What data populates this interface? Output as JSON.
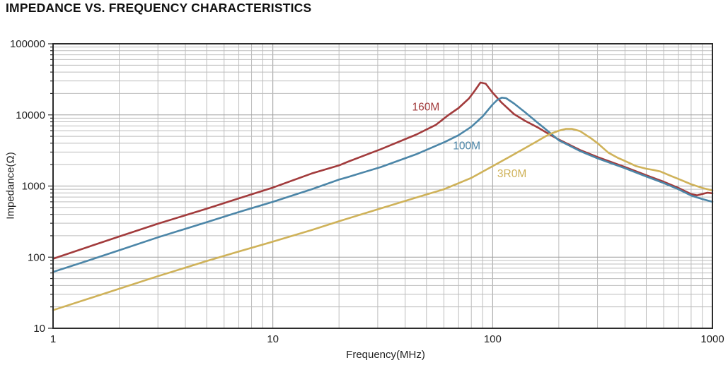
{
  "title": "IMPEDANCE VS. FREQUENCY CHARACTERISTICS",
  "page": {
    "background": "#ffffff"
  },
  "chart_data": {
    "type": "line",
    "title": "IMPEDANCE VS. FREQUENCY CHARACTERISTICS",
    "xlabel": "Frequency(MHz)",
    "ylabel": "Impedance(Ω)",
    "x_scale": "log",
    "y_scale": "log",
    "xlim": [
      1,
      1000
    ],
    "ylim": [
      10,
      100000
    ],
    "grid": "log major and minor gridlines, full frame",
    "legend_position": "inline curve labels",
    "x_ticks": [
      {
        "value": 1,
        "label": "1"
      },
      {
        "value": 10,
        "label": "10"
      },
      {
        "value": 100,
        "label": "100"
      },
      {
        "value": 1000,
        "label": "1000"
      }
    ],
    "y_ticks": [
      {
        "value": 10,
        "label": "10"
      },
      {
        "value": 100,
        "label": "100"
      },
      {
        "value": 1000,
        "label": "1000"
      },
      {
        "value": 10000,
        "label": "10000"
      },
      {
        "value": 100000,
        "label": "100000"
      }
    ],
    "colors": {
      "grid_minor": "#bdbdbd",
      "grid_major": "#9d9d9d",
      "frame": "#2c2c2c",
      "tick_text": "#222222"
    },
    "series": [
      {
        "name": "160M",
        "color": "#a23b3c",
        "label_at": [
          43,
          11500
        ],
        "points": [
          [
            1,
            95
          ],
          [
            1.5,
            145
          ],
          [
            2,
            195
          ],
          [
            3,
            295
          ],
          [
            5,
            480
          ],
          [
            7,
            670
          ],
          [
            10,
            950
          ],
          [
            15,
            1500
          ],
          [
            20,
            1950
          ],
          [
            22,
            2200
          ],
          [
            31,
            3300
          ],
          [
            45,
            5300
          ],
          [
            55,
            7200
          ],
          [
            63,
            10000
          ],
          [
            70,
            12500
          ],
          [
            78,
            17000
          ],
          [
            83,
            22000
          ],
          [
            88,
            28500
          ],
          [
            93,
            27500
          ],
          [
            100,
            20500
          ],
          [
            110,
            14800
          ],
          [
            125,
            10300
          ],
          [
            140,
            8300
          ],
          [
            160,
            6700
          ],
          [
            180,
            5400
          ],
          [
            200,
            4500
          ],
          [
            250,
            3200
          ],
          [
            300,
            2550
          ],
          [
            400,
            1850
          ],
          [
            500,
            1420
          ],
          [
            600,
            1150
          ],
          [
            700,
            940
          ],
          [
            800,
            770
          ],
          [
            850,
            740
          ],
          [
            900,
            775
          ],
          [
            950,
            805
          ],
          [
            1000,
            790
          ]
        ]
      },
      {
        "name": "100M",
        "color": "#4c86a8",
        "label_at": [
          66,
          3300
        ],
        "points": [
          [
            1,
            62
          ],
          [
            1.5,
            93
          ],
          [
            2,
            125
          ],
          [
            3,
            190
          ],
          [
            5,
            310
          ],
          [
            7,
            430
          ],
          [
            10,
            600
          ],
          [
            15,
            900
          ],
          [
            20,
            1230
          ],
          [
            22,
            1340
          ],
          [
            31,
            1850
          ],
          [
            45,
            2800
          ],
          [
            61,
            4200
          ],
          [
            70,
            5200
          ],
          [
            80,
            6800
          ],
          [
            90,
            9500
          ],
          [
            100,
            14000
          ],
          [
            105,
            16200
          ],
          [
            110,
            17500
          ],
          [
            115,
            17200
          ],
          [
            125,
            14500
          ],
          [
            140,
            11000
          ],
          [
            160,
            7800
          ],
          [
            180,
            5800
          ],
          [
            200,
            4400
          ],
          [
            250,
            3100
          ],
          [
            300,
            2450
          ],
          [
            400,
            1780
          ],
          [
            500,
            1360
          ],
          [
            600,
            1100
          ],
          [
            700,
            900
          ],
          [
            800,
            735
          ],
          [
            900,
            655
          ],
          [
            1000,
            600
          ]
        ]
      },
      {
        "name": "3R0M",
        "color": "#cfb259",
        "label_at": [
          105,
          1330
        ],
        "points": [
          [
            1,
            18
          ],
          [
            2,
            36
          ],
          [
            3,
            54
          ],
          [
            5,
            88
          ],
          [
            7,
            120
          ],
          [
            10,
            165
          ],
          [
            15,
            240
          ],
          [
            20,
            320
          ],
          [
            30,
            470
          ],
          [
            45,
            690
          ],
          [
            60,
            900
          ],
          [
            80,
            1300
          ],
          [
            100,
            1900
          ],
          [
            120,
            2600
          ],
          [
            140,
            3400
          ],
          [
            160,
            4300
          ],
          [
            180,
            5300
          ],
          [
            200,
            6000
          ],
          [
            215,
            6350
          ],
          [
            230,
            6350
          ],
          [
            250,
            5900
          ],
          [
            280,
            4700
          ],
          [
            300,
            4000
          ],
          [
            336,
            2950
          ],
          [
            370,
            2500
          ],
          [
            400,
            2250
          ],
          [
            450,
            1900
          ],
          [
            500,
            1750
          ],
          [
            540,
            1680
          ],
          [
            580,
            1600
          ],
          [
            650,
            1380
          ],
          [
            700,
            1260
          ],
          [
            800,
            1060
          ],
          [
            900,
            940
          ],
          [
            1000,
            865
          ]
        ]
      }
    ]
  }
}
